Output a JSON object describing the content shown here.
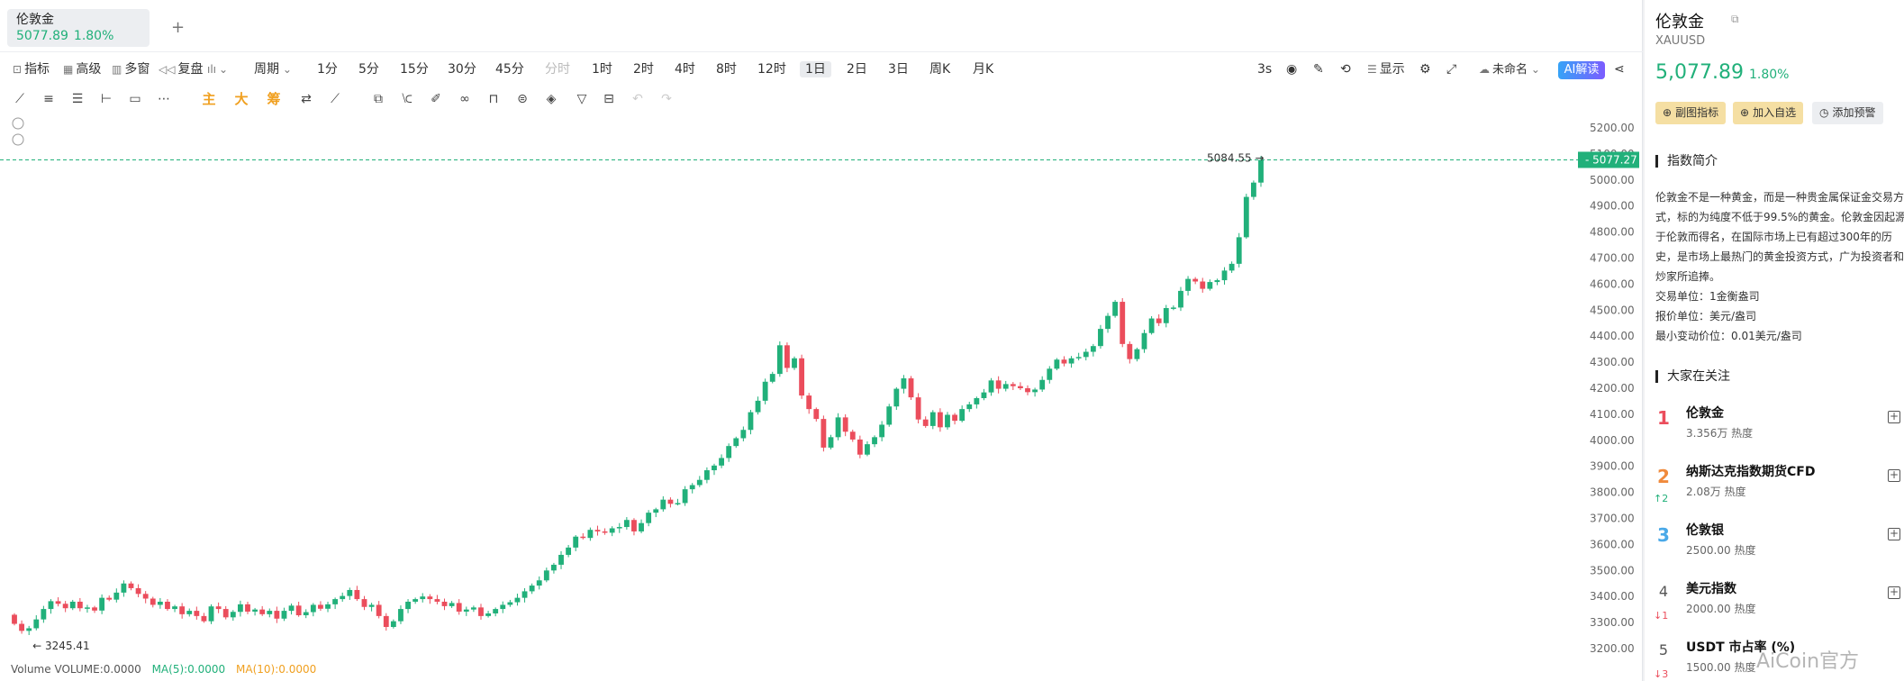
{
  "tab": {
    "name": "伦敦金",
    "price": "5077.89",
    "change": "1.80%"
  },
  "toolbar": {
    "items": [
      "指标",
      "高级",
      "多窗",
      "复盘",
      "周期",
      "1分",
      "5分",
      "15分",
      "30分",
      "45分",
      "分时",
      "1时",
      "2时",
      "4时",
      "8时",
      "12时",
      "1日",
      "2日",
      "3日",
      "周K",
      "月K"
    ],
    "right": [
      "3s",
      "显示",
      "未命名",
      "AI解读"
    ]
  },
  "drawtools": {
    "main": "主",
    "big": "大",
    "chip": "筹"
  },
  "chart_data": {
    "type": "candlestick",
    "symbol": "伦敦金",
    "yticks": [
      3200,
      3300,
      3400,
      3500,
      3600,
      3700,
      3800,
      3900,
      4000,
      4100,
      4200,
      4300,
      4400,
      4500,
      4600,
      4700,
      4800,
      4900,
      5000,
      5100,
      5200
    ],
    "last_price": 5077.27,
    "high_label": "5084.55",
    "low_label": "3245.41",
    "colors": {
      "up": "#21b07a",
      "down": "#eb4d5c"
    },
    "close": [
      3295,
      3268,
      3278,
      3312,
      3352,
      3382,
      3372,
      3355,
      3380,
      3355,
      3358,
      3346,
      3395,
      3388,
      3415,
      3450,
      3432,
      3410,
      3392,
      3368,
      3380,
      3352,
      3362,
      3332,
      3345,
      3325,
      3305,
      3362,
      3352,
      3320,
      3341,
      3370,
      3342,
      3350,
      3332,
      3345,
      3315,
      3345,
      3365,
      3328,
      3340,
      3368,
      3353,
      3370,
      3390,
      3402,
      3425,
      3390,
      3360,
      3368,
      3325,
      3283,
      3305,
      3352,
      3380,
      3390,
      3400,
      3390,
      3380,
      3363,
      3375,
      3342,
      3350,
      3358,
      3325,
      3335,
      3352,
      3368,
      3378,
      3395,
      3420,
      3442,
      3462,
      3500,
      3522,
      3560,
      3588,
      3630,
      3625,
      3656,
      3650,
      3645,
      3662,
      3667,
      3694,
      3650,
      3682,
      3722,
      3735,
      3772,
      3756,
      3759,
      3812,
      3828,
      3848,
      3885,
      3903,
      3932,
      3978,
      4008,
      4040,
      4108,
      4152,
      4225,
      4255,
      4365,
      4278,
      4315,
      4172,
      4120,
      4082,
      3972,
      4012,
      4088,
      4033,
      4003,
      3945,
      3985,
      4012,
      4060,
      4130,
      4198,
      4238,
      4165,
      4080,
      4055,
      4108,
      4050,
      4098,
      4075,
      4120,
      4138,
      4162,
      4184,
      4230,
      4198,
      4216,
      4208,
      4200,
      4185,
      4195,
      4232,
      4275,
      4310,
      4295,
      4315,
      4320,
      4340,
      4362,
      4428,
      4478,
      4532,
      4370,
      4312,
      4350,
      4412,
      4468,
      4450,
      4508,
      4510,
      4574,
      4620,
      4610,
      4582,
      4608,
      4615,
      4652,
      4678,
      4780,
      4935,
      4990,
      5077
    ]
  },
  "volume": {
    "label": "Volume",
    "vol": "VOLUME:0.0000",
    "ma5": "MA(5):0.0000",
    "ma10": "MA(10):0.0000"
  },
  "sidebar": {
    "title": "伦敦金",
    "symbol": "XAUUSD",
    "price": "5,077.89",
    "change": "1.80%",
    "buttons": [
      "副图指标",
      "加入自选",
      "添加预警"
    ],
    "intro_title": "指数简介",
    "intro_lines": [
      "伦敦金不是一种黄金，而是一种贵金属保证金交易方",
      "式，标的为纯度不低于99.5%的黄金。伦敦金因起源",
      "于伦敦而得名，在国际市场上已有超过300年的历",
      "史，是市场上最热门的黄金投资方式，广为投资者和",
      "炒家所追捧。"
    ],
    "info": [
      "交易单位：1金衡盎司",
      "报价单位：美元/盎司",
      "最小变动价位：0.01美元/盎司"
    ],
    "hot_title": "大家在关注",
    "hot": [
      {
        "rank": "1",
        "name": "伦敦金",
        "heat": "3.356万 热度",
        "delta": ""
      },
      {
        "rank": "2",
        "name": "纳斯达克指数期货CFD",
        "heat": "2.08万 热度",
        "delta": "↑2"
      },
      {
        "rank": "3",
        "name": "伦敦银",
        "heat": "2500.00 热度",
        "delta": ""
      },
      {
        "rank": "4",
        "name": "美元指数",
        "heat": "2000.00 热度",
        "delta": "↓1"
      },
      {
        "rank": "5",
        "name": "USDT 市占率 (%)",
        "heat": "1500.00 热度",
        "delta": "↓3"
      }
    ]
  },
  "watermark": "AiCoin官方"
}
